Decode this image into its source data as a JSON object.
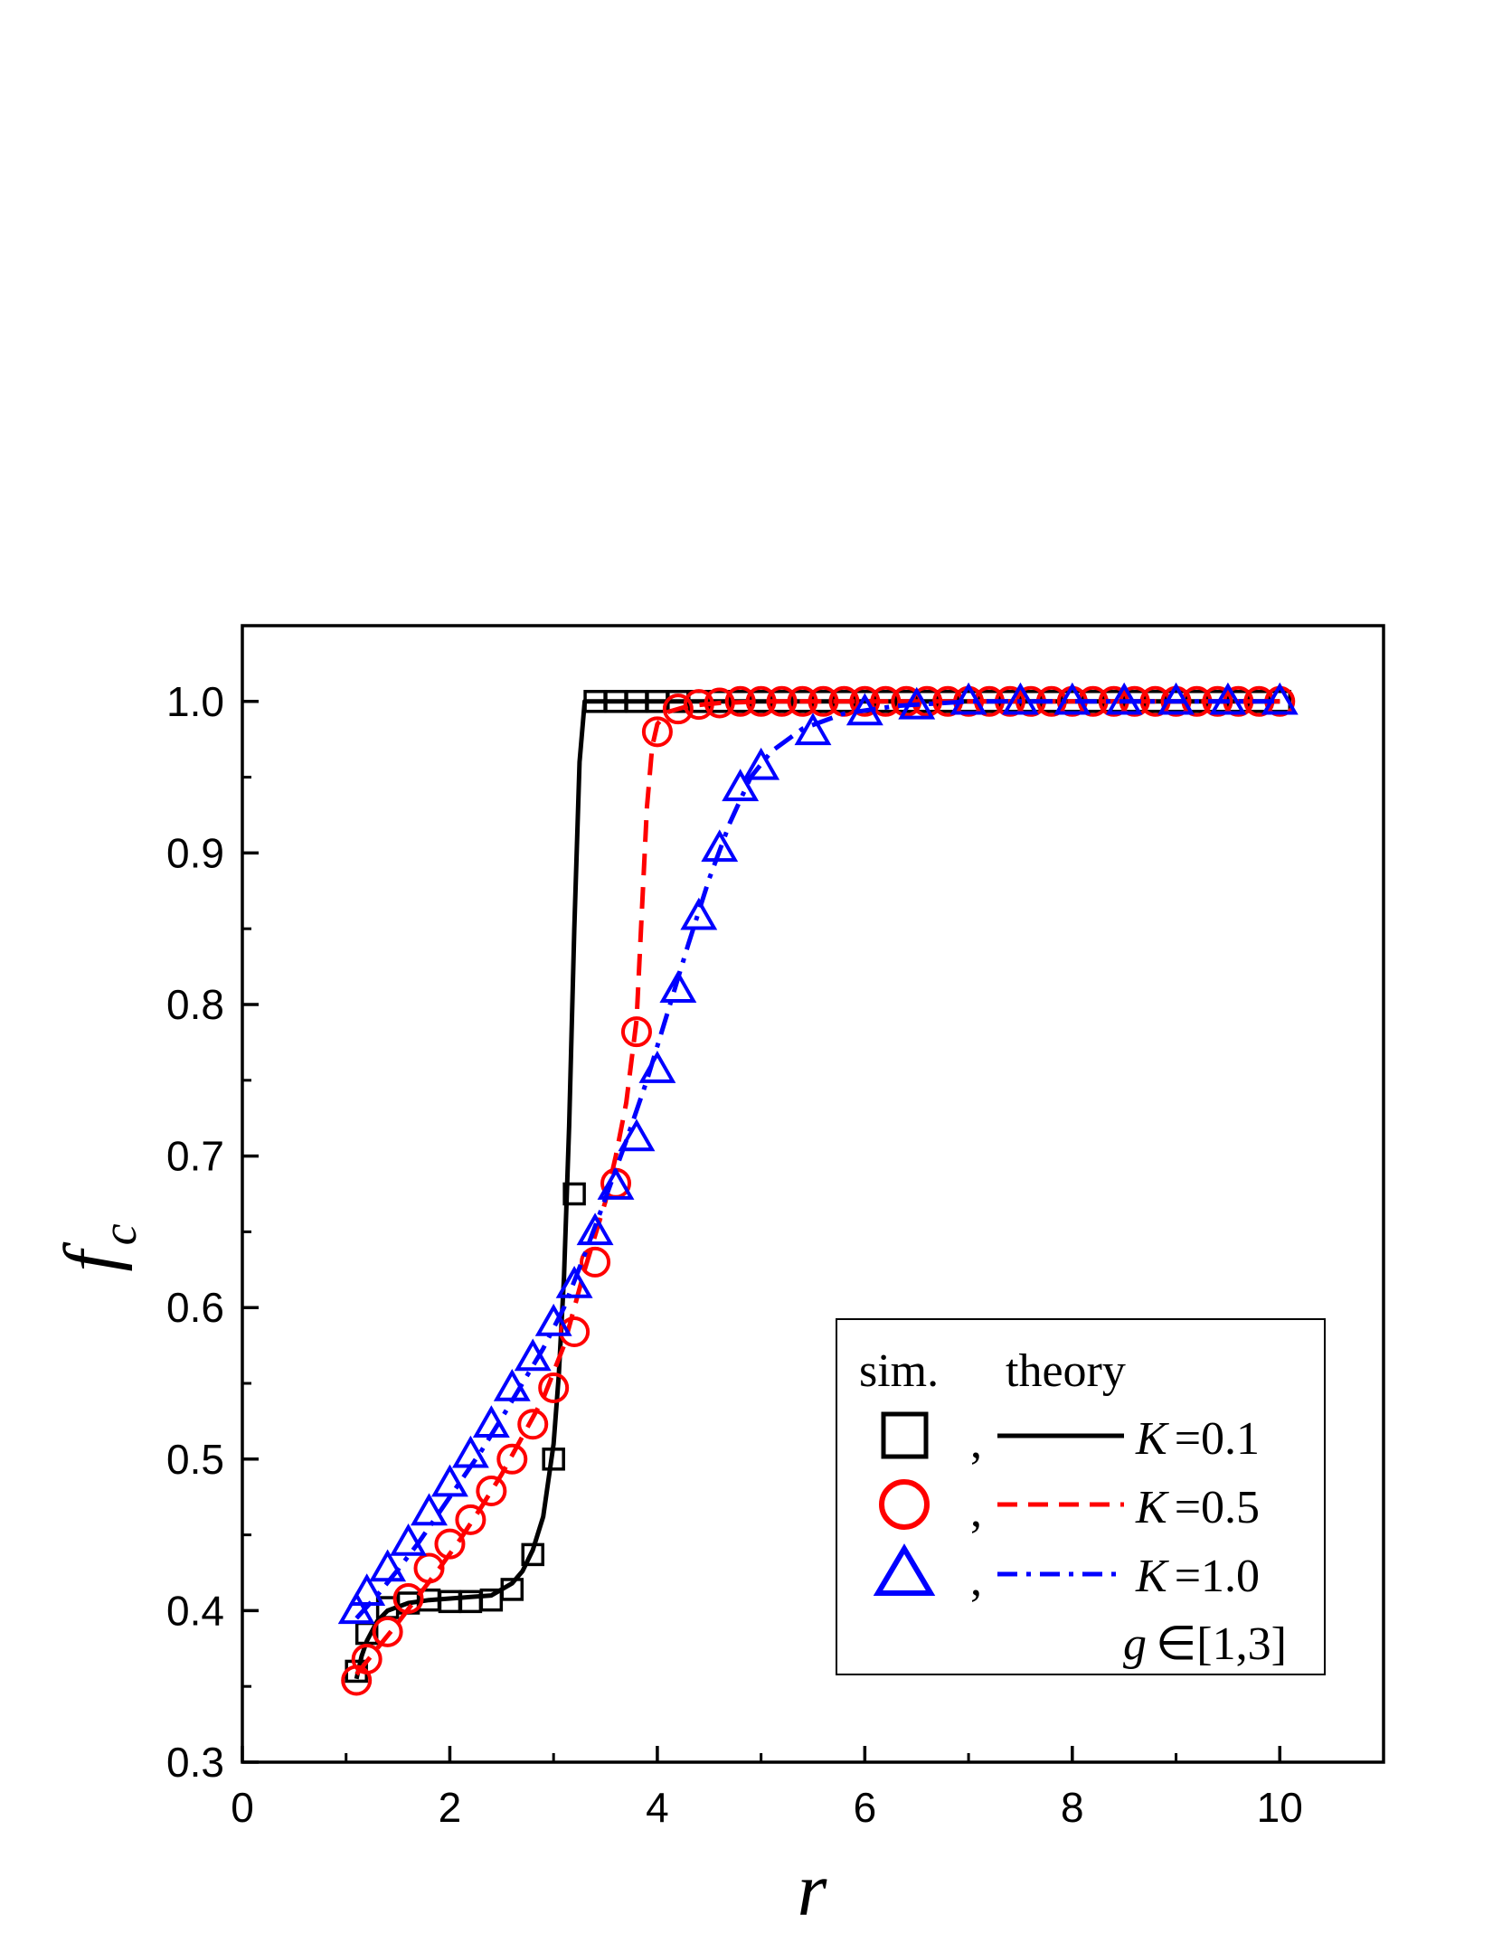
{
  "chart_data": {
    "type": "scatter",
    "xlabel": "r",
    "ylabel": "f",
    "ylabel_sub": "c",
    "xlim": [
      0,
      11
    ],
    "ylim": [
      0.3,
      1.05
    ],
    "x_ticks": [
      0,
      2,
      4,
      6,
      8,
      10
    ],
    "x_tick_labels": [
      "0",
      "2",
      "4",
      "6",
      "8",
      "10"
    ],
    "y_ticks": [
      0.3,
      0.4,
      0.5,
      0.6,
      0.7,
      0.8,
      0.9,
      1.0
    ],
    "y_tick_labels": [
      "0.3",
      "0.4",
      "0.5",
      "0.6",
      "0.7",
      "0.8",
      "0.9",
      "1.0"
    ],
    "grid": false,
    "legend": {
      "placement": "bottom-right",
      "header_sim": "sim.",
      "header_theory": "theory",
      "comma": ",",
      "note_var": "g",
      "note_text": "∈[1,3]",
      "entries": [
        {
          "var": "K",
          "text": "=0.1"
        },
        {
          "var": "K",
          "text": "=0.5"
        },
        {
          "var": "K",
          "text": "=1.0"
        }
      ]
    },
    "series": [
      {
        "name": "K=0.1",
        "color": "#000000",
        "marker": "square",
        "line_style": "solid",
        "sim_x": [
          1.1,
          1.2,
          1.4,
          1.6,
          1.8,
          2.0,
          2.2,
          2.4,
          2.6,
          2.8,
          3.0,
          3.2,
          3.4,
          3.6,
          3.8,
          4.0,
          4.2,
          4.4,
          4.6,
          4.8,
          5.0,
          5.2,
          5.4,
          5.6,
          5.8,
          6.0,
          6.2,
          6.4,
          6.6,
          6.8,
          7.0,
          7.2,
          7.4,
          7.6,
          7.8,
          8.0,
          8.2,
          8.4,
          8.6,
          8.8,
          9.0,
          9.2,
          9.4,
          9.6,
          9.8,
          10.0
        ],
        "sim_y": [
          0.36,
          0.385,
          0.402,
          0.405,
          0.407,
          0.406,
          0.406,
          0.407,
          0.414,
          0.437,
          0.5,
          0.675,
          1.0,
          1.0,
          1.0,
          1.0,
          1.0,
          1.0,
          1.0,
          1.0,
          1.0,
          1.0,
          1.0,
          1.0,
          1.0,
          1.0,
          1.0,
          1.0,
          1.0,
          1.0,
          1.0,
          1.0,
          1.0,
          1.0,
          1.0,
          1.0,
          1.0,
          1.0,
          1.0,
          1.0,
          1.0,
          1.0,
          1.0,
          1.0,
          1.0,
          1.0
        ],
        "theory_x": [
          1.1,
          1.15,
          1.2,
          1.3,
          1.4,
          1.6,
          1.8,
          2.0,
          2.2,
          2.4,
          2.6,
          2.7,
          2.8,
          2.9,
          3.0,
          3.05,
          3.1,
          3.15,
          3.2,
          3.25,
          3.3,
          3.4,
          4.0,
          6.0,
          8.0,
          10.0
        ],
        "theory_y": [
          0.355,
          0.37,
          0.38,
          0.393,
          0.4,
          0.405,
          0.407,
          0.408,
          0.409,
          0.41,
          0.418,
          0.426,
          0.44,
          0.462,
          0.51,
          0.555,
          0.62,
          0.72,
          0.85,
          0.96,
          1.0,
          1.0,
          1.0,
          1.0,
          1.0,
          1.0
        ]
      },
      {
        "name": "K=0.5",
        "color": "#ff0000",
        "marker": "circle",
        "line_style": "dashed",
        "sim_x": [
          1.1,
          1.2,
          1.4,
          1.6,
          1.8,
          2.0,
          2.2,
          2.4,
          2.6,
          2.8,
          3.0,
          3.2,
          3.4,
          3.6,
          3.8,
          4.0,
          4.2,
          4.4,
          4.6,
          4.8,
          5.0,
          5.2,
          5.4,
          5.6,
          5.8,
          6.0,
          6.2,
          6.4,
          6.6,
          6.8,
          7.0,
          7.2,
          7.4,
          7.6,
          7.8,
          8.0,
          8.2,
          8.4,
          8.6,
          8.8,
          9.0,
          9.2,
          9.4,
          9.6,
          9.8,
          10.0
        ],
        "sim_y": [
          0.354,
          0.368,
          0.386,
          0.408,
          0.428,
          0.444,
          0.46,
          0.479,
          0.5,
          0.523,
          0.547,
          0.584,
          0.63,
          0.682,
          0.782,
          0.98,
          0.995,
          0.998,
          0.999,
          1.0,
          1.0,
          1.0,
          1.0,
          1.0,
          1.0,
          1.0,
          1.0,
          1.0,
          1.0,
          1.0,
          1.0,
          1.0,
          1.0,
          1.0,
          1.0,
          1.0,
          1.0,
          1.0,
          1.0,
          1.0,
          1.0,
          1.0,
          1.0,
          1.0,
          1.0,
          1.0
        ],
        "theory_x": [
          1.1,
          1.3,
          1.5,
          1.7,
          1.9,
          2.1,
          2.3,
          2.5,
          2.7,
          2.9,
          3.1,
          3.3,
          3.5,
          3.6,
          3.7,
          3.8,
          3.85,
          3.9,
          3.95,
          4.0,
          4.1,
          4.3,
          4.6,
          5.0,
          6.0,
          8.0,
          10.0
        ],
        "theory_y": [
          0.358,
          0.375,
          0.392,
          0.41,
          0.428,
          0.447,
          0.468,
          0.49,
          0.515,
          0.54,
          0.575,
          0.625,
          0.67,
          0.7,
          0.735,
          0.79,
          0.86,
          0.93,
          0.97,
          0.985,
          0.993,
          0.997,
          0.999,
          1.0,
          1.0,
          1.0,
          1.0
        ]
      },
      {
        "name": "K=1.0",
        "color": "#0000ff",
        "marker": "triangle",
        "line_style": "dashdot",
        "sim_x": [
          1.1,
          1.2,
          1.4,
          1.6,
          1.8,
          2.0,
          2.2,
          2.4,
          2.6,
          2.8,
          3.0,
          3.2,
          3.4,
          3.6,
          3.8,
          4.0,
          4.2,
          4.4,
          4.6,
          4.8,
          5.0,
          5.5,
          6.0,
          6.5,
          7.0,
          7.5,
          8.0,
          8.5,
          9.0,
          9.5,
          10.0
        ],
        "sim_y": [
          0.4,
          0.412,
          0.428,
          0.445,
          0.465,
          0.484,
          0.503,
          0.523,
          0.547,
          0.567,
          0.59,
          0.615,
          0.65,
          0.68,
          0.712,
          0.757,
          0.81,
          0.858,
          0.903,
          0.943,
          0.957,
          0.98,
          0.993,
          0.997,
          1.0,
          1.0,
          1.0,
          1.0,
          1.0,
          1.0,
          1.0
        ],
        "theory_x": [
          1.1,
          1.3,
          1.5,
          1.7,
          1.9,
          2.1,
          2.3,
          2.5,
          2.7,
          2.9,
          3.1,
          3.3,
          3.5,
          3.7,
          3.9,
          4.1,
          4.3,
          4.5,
          4.7,
          4.9,
          5.1,
          5.4,
          5.8,
          6.3,
          7.0,
          8.0,
          10.0
        ],
        "theory_y": [
          0.395,
          0.41,
          0.427,
          0.445,
          0.465,
          0.485,
          0.505,
          0.527,
          0.55,
          0.573,
          0.6,
          0.635,
          0.672,
          0.71,
          0.75,
          0.795,
          0.84,
          0.883,
          0.92,
          0.95,
          0.967,
          0.982,
          0.992,
          0.997,
          1.0,
          1.0,
          1.0
        ]
      }
    ]
  }
}
